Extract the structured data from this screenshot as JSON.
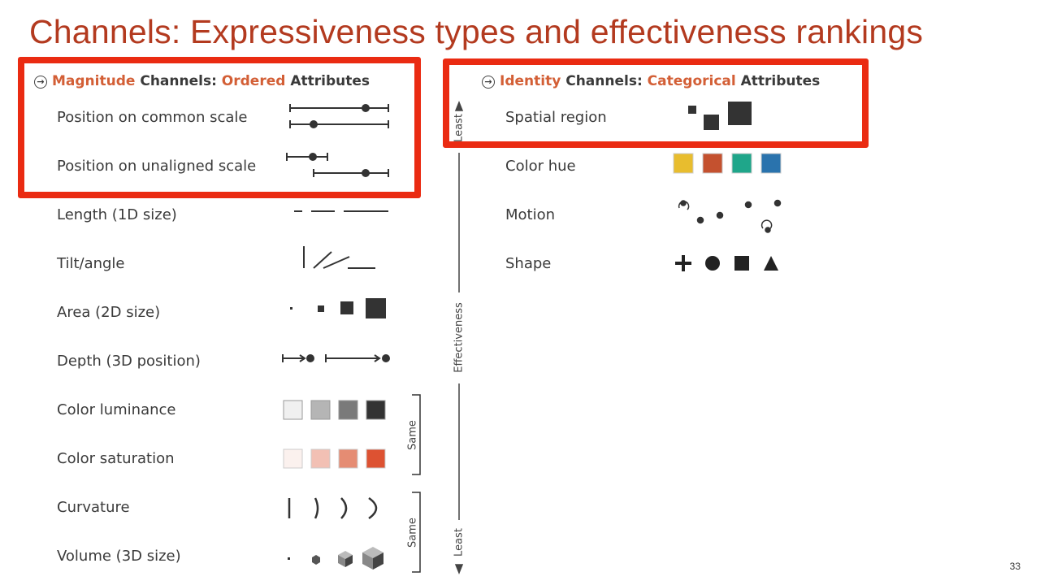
{
  "title": "Channels: Expressiveness types and effectiveness rankings",
  "page_number": "33",
  "magnitude_header": {
    "w1": "Magnitude",
    "w2": " Channels: ",
    "w3": "Ordered",
    "w4": " Attributes"
  },
  "identity_header": {
    "w1": "Identity",
    "w2": " Channels: ",
    "w3": "Categorical",
    "w4": " Attributes"
  },
  "magnitude_channels": [
    "Position on common scale",
    "Position on unaligned scale",
    "Length (1D size)",
    "Tilt/angle",
    "Area (2D size)",
    "Depth (3D position)",
    "Color luminance",
    "Color saturation",
    "Curvature",
    "Volume (3D size)"
  ],
  "identity_channels": [
    "Spatial region",
    "Color hue",
    "Motion",
    "Shape"
  ],
  "effectiveness_axis": {
    "top": "Least",
    "middle": "Effectiveness",
    "bottom": "Least"
  },
  "same_brackets": [
    "Same",
    "Same"
  ],
  "colors": {
    "title": "#b33a1f",
    "highlight": "#ea2b12",
    "accent_orange": "#d35f36",
    "luminance": [
      "#f0f0f0",
      "#b5b5b5",
      "#7a7a7a",
      "#333333"
    ],
    "saturation": [
      "#fbf1ee",
      "#f2c0b4",
      "#e58c73",
      "#dd5232"
    ],
    "hues": [
      "#e8bd2e",
      "#c4512f",
      "#1fa68a",
      "#2a73ad"
    ]
  }
}
